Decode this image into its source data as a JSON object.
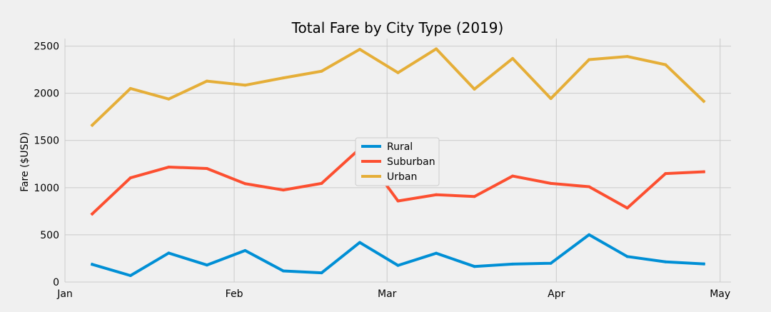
{
  "chart_data": {
    "type": "line",
    "title": "Total Fare by City Type (2019)",
    "xlabel": "",
    "ylabel": "Fare ($USD)",
    "x": [
      "2019-01-06",
      "2019-01-13",
      "2019-01-20",
      "2019-01-27",
      "2019-02-03",
      "2019-02-10",
      "2019-02-17",
      "2019-02-24",
      "2019-03-03",
      "2019-03-10",
      "2019-03-17",
      "2019-03-24",
      "2019-03-31",
      "2019-04-07",
      "2019-04-14",
      "2019-04-21",
      "2019-04-28"
    ],
    "xlim": [
      "2019-01-01",
      "2019-05-03"
    ],
    "xticks": [
      {
        "date": "2019-01-01",
        "label": "Jan"
      },
      {
        "date": "2019-02-01",
        "label": "Feb"
      },
      {
        "date": "2019-03-01",
        "label": "Mar"
      },
      {
        "date": "2019-04-01",
        "label": "Apr"
      },
      {
        "date": "2019-05-01",
        "label": "May"
      }
    ],
    "ylim": [
      0,
      2580
    ],
    "yticks": [
      0,
      500,
      1000,
      1500,
      2000,
      2500
    ],
    "grid": true,
    "legend_position": "center",
    "series": [
      {
        "name": "Rural",
        "color": "#008fd5",
        "values": [
          187,
          68,
          307,
          180,
          334,
          117,
          97,
          419,
          176,
          305,
          165,
          190,
          199,
          501,
          270,
          214,
          192
        ]
      },
      {
        "name": "Suburban",
        "color": "#fc4f30",
        "values": [
          722,
          1104,
          1218,
          1203,
          1042,
          975,
          1045,
          1413,
          859,
          925,
          906,
          1123,
          1045,
          1010,
          784,
          1149,
          1168
        ]
      },
      {
        "name": "Urban",
        "color": "#e5ae38",
        "values": [
          1662,
          2051,
          1939,
          2129,
          2086,
          2163,
          2234,
          2466,
          2218,
          2471,
          2044,
          2369,
          1944,
          2357,
          2390,
          2303,
          1916
        ]
      }
    ]
  }
}
